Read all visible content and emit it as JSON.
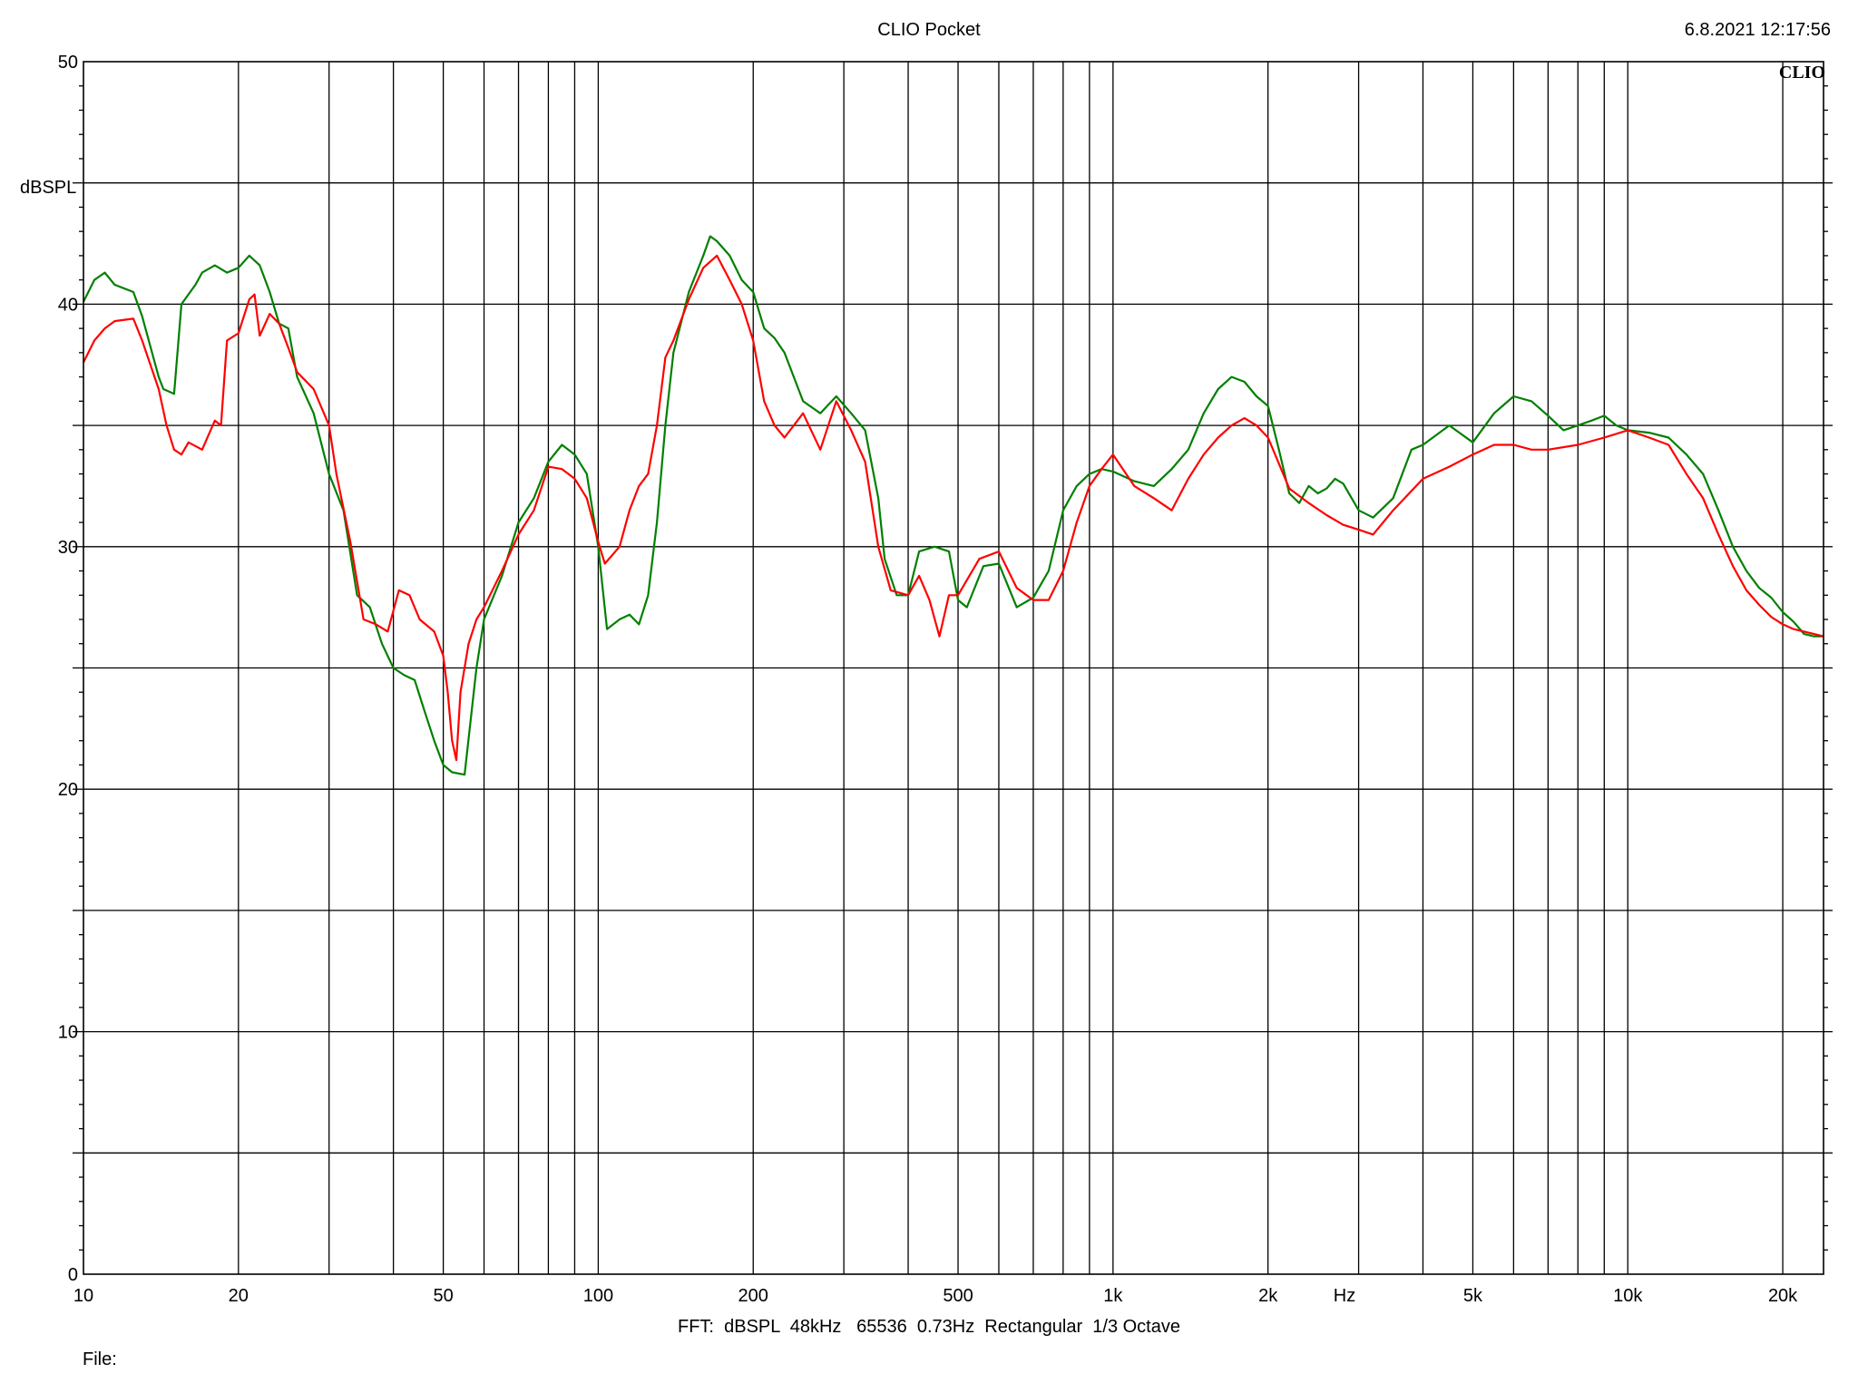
{
  "header": {
    "title": "CLIO Pocket",
    "timestamp": "6.8.2021 12:17:56",
    "logo": "CLIO"
  },
  "footer": {
    "settings": "FFT:  dBSPL  48kHz   65536  0.73Hz  Rectangular  1/3 Octave",
    "file_label": "File:"
  },
  "chart_data": {
    "type": "line",
    "title": "CLIO Pocket",
    "xlabel": "Hz",
    "ylabel": "dBSPL",
    "xscale": "log",
    "xlim": [
      10,
      24000
    ],
    "ylim": [
      0,
      50
    ],
    "grid": true,
    "x_ticks": [
      {
        "value": 10,
        "label": "10"
      },
      {
        "value": 20,
        "label": "20"
      },
      {
        "value": 50,
        "label": "50"
      },
      {
        "value": 100,
        "label": "100"
      },
      {
        "value": 200,
        "label": "200"
      },
      {
        "value": 500,
        "label": "500"
      },
      {
        "value": 1000,
        "label": "1k"
      },
      {
        "value": 2000,
        "label": "2k"
      },
      {
        "value": 5000,
        "label": "5k"
      },
      {
        "value": 10000,
        "label": "10k"
      },
      {
        "value": 20000,
        "label": "20k"
      }
    ],
    "y_ticks": [
      {
        "value": 0,
        "label": "0"
      },
      {
        "value": 10,
        "label": "10"
      },
      {
        "value": 20,
        "label": "20"
      },
      {
        "value": 30,
        "label": "30"
      },
      {
        "value": 40,
        "label": "40"
      },
      {
        "value": 50,
        "label": "50"
      }
    ],
    "series": [
      {
        "color": "#008000",
        "points": [
          [
            10,
            40.1
          ],
          [
            10.5,
            41
          ],
          [
            11,
            41.3
          ],
          [
            11.5,
            40.8
          ],
          [
            12.5,
            40.5
          ],
          [
            13,
            39.5
          ],
          [
            14,
            37
          ],
          [
            14.3,
            36.5
          ],
          [
            15,
            36.3
          ],
          [
            15.5,
            40
          ],
          [
            16.5,
            40.8
          ],
          [
            17,
            41.3
          ],
          [
            18,
            41.6
          ],
          [
            19,
            41.3
          ],
          [
            20,
            41.5
          ],
          [
            21,
            42
          ],
          [
            22,
            41.6
          ],
          [
            23,
            40.5
          ],
          [
            24,
            39.2
          ],
          [
            25,
            39
          ],
          [
            26,
            37
          ],
          [
            28,
            35.5
          ],
          [
            30,
            33
          ],
          [
            32,
            31.5
          ],
          [
            34,
            28
          ],
          [
            36,
            27.5
          ],
          [
            38,
            26
          ],
          [
            40,
            25
          ],
          [
            42,
            24.7
          ],
          [
            44,
            24.5
          ],
          [
            46,
            23.2
          ],
          [
            48,
            22
          ],
          [
            50,
            21
          ],
          [
            52,
            20.7
          ],
          [
            55,
            20.6
          ],
          [
            58,
            25
          ],
          [
            60,
            27
          ],
          [
            65,
            28.8
          ],
          [
            70,
            31
          ],
          [
            75,
            32
          ],
          [
            80,
            33.5
          ],
          [
            85,
            34.2
          ],
          [
            90,
            33.8
          ],
          [
            95,
            33
          ],
          [
            100,
            30
          ],
          [
            104,
            26.6
          ],
          [
            110,
            27
          ],
          [
            115,
            27.2
          ],
          [
            120,
            26.8
          ],
          [
            125,
            28
          ],
          [
            130,
            31
          ],
          [
            135,
            35
          ],
          [
            140,
            38
          ],
          [
            150,
            40.5
          ],
          [
            160,
            42
          ],
          [
            165,
            42.8
          ],
          [
            170,
            42.6
          ],
          [
            180,
            42
          ],
          [
            190,
            41
          ],
          [
            200,
            40.5
          ],
          [
            210,
            39
          ],
          [
            220,
            38.6
          ],
          [
            230,
            38
          ],
          [
            250,
            36
          ],
          [
            270,
            35.5
          ],
          [
            290,
            36.2
          ],
          [
            310,
            35.5
          ],
          [
            330,
            34.8
          ],
          [
            350,
            32
          ],
          [
            360,
            29.5
          ],
          [
            380,
            28
          ],
          [
            400,
            28
          ],
          [
            420,
            29.8
          ],
          [
            450,
            30
          ],
          [
            480,
            29.8
          ],
          [
            500,
            27.8
          ],
          [
            520,
            27.5
          ],
          [
            560,
            29.2
          ],
          [
            600,
            29.3
          ],
          [
            650,
            27.5
          ],
          [
            700,
            27.9
          ],
          [
            750,
            29
          ],
          [
            800,
            31.5
          ],
          [
            850,
            32.5
          ],
          [
            900,
            33
          ],
          [
            950,
            33.2
          ],
          [
            1000,
            33.1
          ],
          [
            1100,
            32.7
          ],
          [
            1200,
            32.5
          ],
          [
            1300,
            33.2
          ],
          [
            1400,
            34
          ],
          [
            1500,
            35.5
          ],
          [
            1600,
            36.5
          ],
          [
            1700,
            37
          ],
          [
            1800,
            36.8
          ],
          [
            1900,
            36.2
          ],
          [
            2000,
            35.8
          ],
          [
            2100,
            34
          ],
          [
            2200,
            32.2
          ],
          [
            2300,
            31.8
          ],
          [
            2400,
            32.5
          ],
          [
            2500,
            32.2
          ],
          [
            2600,
            32.4
          ],
          [
            2700,
            32.8
          ],
          [
            2800,
            32.6
          ],
          [
            3000,
            31.5
          ],
          [
            3200,
            31.2
          ],
          [
            3500,
            32
          ],
          [
            3800,
            34
          ],
          [
            4000,
            34.2
          ],
          [
            4500,
            35
          ],
          [
            5000,
            34.3
          ],
          [
            5500,
            35.5
          ],
          [
            6000,
            36.2
          ],
          [
            6500,
            36
          ],
          [
            7000,
            35.4
          ],
          [
            7500,
            34.8
          ],
          [
            8000,
            35
          ],
          [
            8500,
            35.2
          ],
          [
            9000,
            35.4
          ],
          [
            9500,
            35
          ],
          [
            10000,
            34.8
          ],
          [
            11000,
            34.7
          ],
          [
            12000,
            34.5
          ],
          [
            13000,
            33.8
          ],
          [
            14000,
            33
          ],
          [
            15000,
            31.5
          ],
          [
            16000,
            30
          ],
          [
            17000,
            29
          ],
          [
            18000,
            28.3
          ],
          [
            19000,
            27.9
          ],
          [
            20000,
            27.3
          ],
          [
            21000,
            26.9
          ],
          [
            22000,
            26.4
          ],
          [
            23000,
            26.3
          ],
          [
            24000,
            26.3
          ]
        ]
      },
      {
        "color": "#ff0000",
        "points": [
          [
            10,
            37.6
          ],
          [
            10.5,
            38.5
          ],
          [
            11,
            39
          ],
          [
            11.5,
            39.3
          ],
          [
            12.5,
            39.4
          ],
          [
            13,
            38.5
          ],
          [
            14,
            36.5
          ],
          [
            14.5,
            35
          ],
          [
            15,
            34
          ],
          [
            15.5,
            33.8
          ],
          [
            16,
            34.3
          ],
          [
            17,
            34
          ],
          [
            18,
            35.2
          ],
          [
            18.5,
            35
          ],
          [
            19,
            38.5
          ],
          [
            20,
            38.8
          ],
          [
            21,
            40.2
          ],
          [
            21.5,
            40.4
          ],
          [
            22,
            38.7
          ],
          [
            23,
            39.6
          ],
          [
            24,
            39.2
          ],
          [
            25,
            38.2
          ],
          [
            26,
            37.2
          ],
          [
            28,
            36.5
          ],
          [
            30,
            35
          ],
          [
            31,
            33
          ],
          [
            33,
            30.2
          ],
          [
            35,
            27
          ],
          [
            37,
            26.8
          ],
          [
            39,
            26.5
          ],
          [
            41,
            28.2
          ],
          [
            43,
            28
          ],
          [
            45,
            27
          ],
          [
            48,
            26.5
          ],
          [
            50,
            25.5
          ],
          [
            51,
            24
          ],
          [
            52,
            22
          ],
          [
            53,
            21.2
          ],
          [
            54,
            24
          ],
          [
            56,
            26
          ],
          [
            58,
            27
          ],
          [
            60,
            27.5
          ],
          [
            65,
            29
          ],
          [
            70,
            30.5
          ],
          [
            75,
            31.5
          ],
          [
            80,
            33.3
          ],
          [
            85,
            33.2
          ],
          [
            90,
            32.8
          ],
          [
            95,
            32
          ],
          [
            100,
            30.2
          ],
          [
            103,
            29.3
          ],
          [
            110,
            30
          ],
          [
            115,
            31.5
          ],
          [
            120,
            32.5
          ],
          [
            125,
            33
          ],
          [
            130,
            35
          ],
          [
            135,
            37.8
          ],
          [
            140,
            38.5
          ],
          [
            150,
            40.2
          ],
          [
            160,
            41.5
          ],
          [
            170,
            42
          ],
          [
            180,
            41
          ],
          [
            190,
            40
          ],
          [
            200,
            38.5
          ],
          [
            210,
            36
          ],
          [
            220,
            35
          ],
          [
            230,
            34.5
          ],
          [
            250,
            35.5
          ],
          [
            270,
            34
          ],
          [
            290,
            36
          ],
          [
            310,
            34.8
          ],
          [
            330,
            33.5
          ],
          [
            350,
            30
          ],
          [
            370,
            28.2
          ],
          [
            400,
            28
          ],
          [
            420,
            28.8
          ],
          [
            440,
            27.8
          ],
          [
            460,
            26.3
          ],
          [
            480,
            28
          ],
          [
            500,
            28
          ],
          [
            550,
            29.5
          ],
          [
            600,
            29.8
          ],
          [
            650,
            28.3
          ],
          [
            700,
            27.8
          ],
          [
            750,
            27.8
          ],
          [
            800,
            29
          ],
          [
            850,
            31
          ],
          [
            900,
            32.5
          ],
          [
            950,
            33.2
          ],
          [
            1000,
            33.8
          ],
          [
            1100,
            32.5
          ],
          [
            1200,
            32
          ],
          [
            1300,
            31.5
          ],
          [
            1400,
            32.8
          ],
          [
            1500,
            33.8
          ],
          [
            1600,
            34.5
          ],
          [
            1700,
            35
          ],
          [
            1800,
            35.3
          ],
          [
            1900,
            35
          ],
          [
            2000,
            34.5
          ],
          [
            2200,
            32.4
          ],
          [
            2400,
            31.8
          ],
          [
            2600,
            31.3
          ],
          [
            2800,
            30.9
          ],
          [
            3000,
            30.7
          ],
          [
            3200,
            30.5
          ],
          [
            3500,
            31.5
          ],
          [
            4000,
            32.8
          ],
          [
            4500,
            33.3
          ],
          [
            5000,
            33.8
          ],
          [
            5500,
            34.2
          ],
          [
            6000,
            34.2
          ],
          [
            6500,
            34
          ],
          [
            7000,
            34
          ],
          [
            8000,
            34.2
          ],
          [
            9000,
            34.5
          ],
          [
            10000,
            34.8
          ],
          [
            11000,
            34.5
          ],
          [
            12000,
            34.2
          ],
          [
            13000,
            33
          ],
          [
            14000,
            32
          ],
          [
            15000,
            30.5
          ],
          [
            16000,
            29.2
          ],
          [
            17000,
            28.2
          ],
          [
            18000,
            27.6
          ],
          [
            19000,
            27.1
          ],
          [
            20000,
            26.8
          ],
          [
            21000,
            26.6
          ],
          [
            22000,
            26.5
          ],
          [
            23000,
            26.4
          ],
          [
            24000,
            26.3
          ]
        ]
      }
    ]
  }
}
